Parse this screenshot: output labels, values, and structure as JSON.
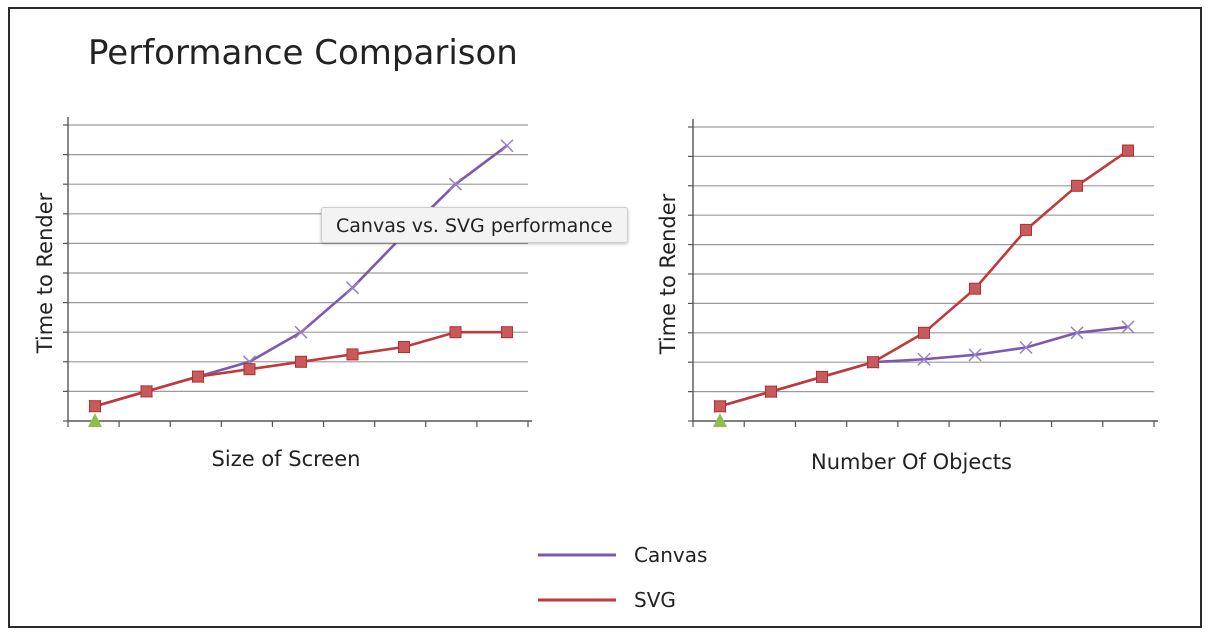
{
  "title": "Performance Comparison",
  "tooltip": "Canvas vs. SVG performance",
  "legend": [
    {
      "name": "Canvas",
      "color": "#7b59b0"
    },
    {
      "name": "SVG",
      "color": "#c0393b"
    }
  ],
  "chart_data": [
    {
      "type": "line",
      "xlabel": "Size of Screen",
      "ylabel": "Time to Render",
      "ylim": [
        0,
        10
      ],
      "x": [
        1,
        2,
        3,
        4,
        5,
        6,
        7,
        8,
        9
      ],
      "series": [
        {
          "name": "Canvas",
          "color": "#7b59b0",
          "marker": "x",
          "values": [
            0.5,
            1.0,
            1.5,
            2.0,
            3.0,
            4.5,
            6.3,
            8.0,
            9.3
          ]
        },
        {
          "name": "SVG",
          "color": "#c0393b",
          "marker": "square",
          "values": [
            0.5,
            1.0,
            1.5,
            1.75,
            2.0,
            2.25,
            2.5,
            3.0,
            3.0
          ]
        }
      ]
    },
    {
      "type": "line",
      "xlabel": "Number Of Objects",
      "ylabel": "Time to Render",
      "ylim": [
        0,
        10
      ],
      "x": [
        1,
        2,
        3,
        4,
        5,
        6,
        7,
        8,
        9
      ],
      "series": [
        {
          "name": "Canvas",
          "color": "#7b59b0",
          "marker": "x",
          "values": [
            0.5,
            1.0,
            1.5,
            2.0,
            2.1,
            2.25,
            2.5,
            3.0,
            3.2
          ]
        },
        {
          "name": "SVG",
          "color": "#c0393b",
          "marker": "square",
          "values": [
            0.5,
            1.0,
            1.5,
            2.0,
            3.0,
            4.5,
            6.5,
            8.0,
            9.2
          ]
        }
      ]
    }
  ]
}
